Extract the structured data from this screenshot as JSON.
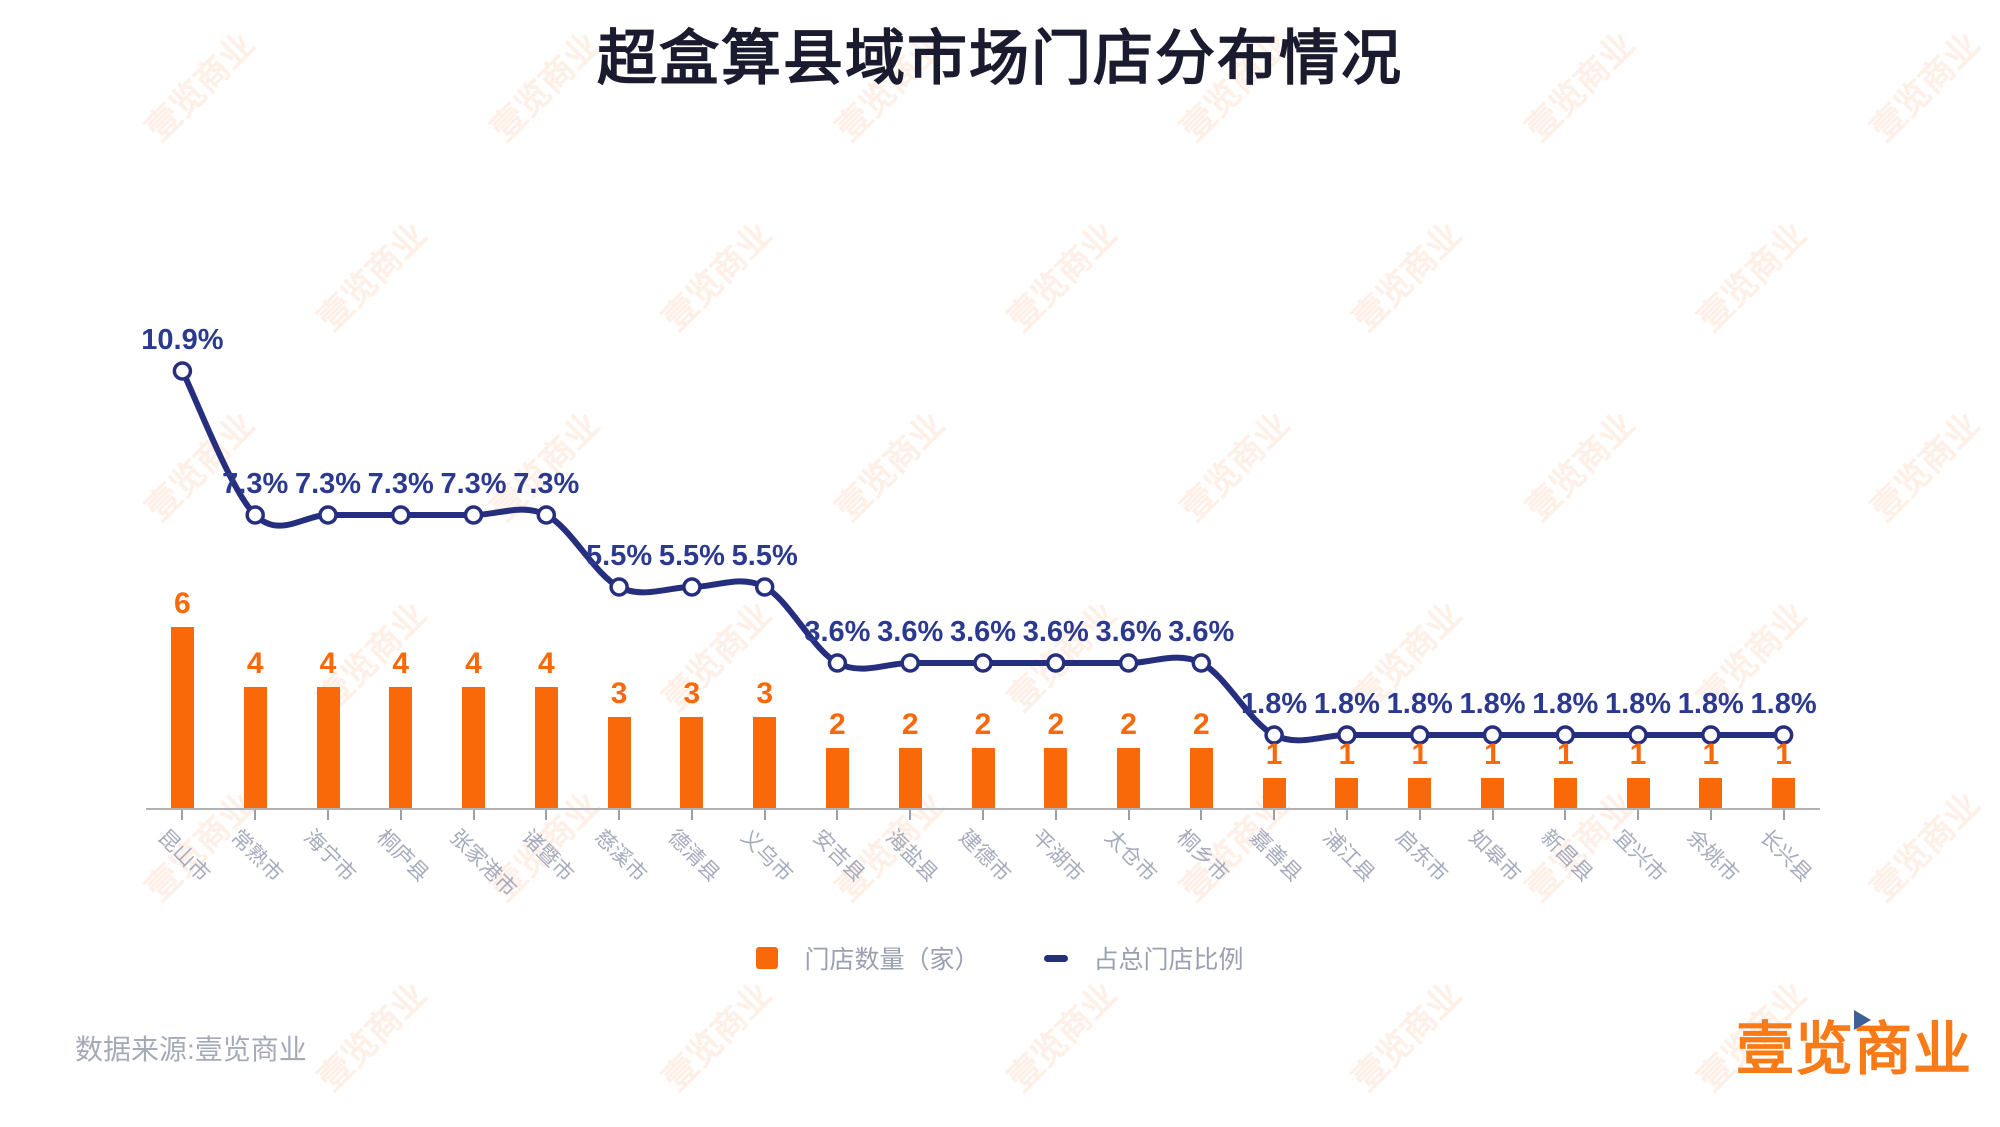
{
  "title": "超盒算县域市场门店分布情况",
  "source_note": "数据来源:壹览商业",
  "logo_text": "壹览商业",
  "watermark_text": "壹览商业",
  "legend": {
    "bars_label": "门店数量（家）",
    "line_label": "占总门店比例"
  },
  "colors": {
    "bar": "#f9690a",
    "bar_label": "#f9690a",
    "line": "#262f7e",
    "line_marker_fill": "#ffffff",
    "pct_label": "#2b3a8f",
    "title": "#1b1b2f",
    "axis": "#b0b2b6",
    "category_label": "#a6abbd",
    "legend_text": "#9aa0b0",
    "logo": "#f97b17",
    "logo_triangle": "#3d6097",
    "watermark": "rgba(247,125,55,0.12)"
  },
  "chart_data": {
    "type": "bar",
    "subtype": "bar-with-line-overlay",
    "categories": [
      "昆山市",
      "常熟市",
      "海宁市",
      "桐庐县",
      "张家港市",
      "诸暨市",
      "慈溪市",
      "德清县",
      "义乌市",
      "安吉县",
      "海盐县",
      "建德市",
      "平湖市",
      "太仓市",
      "桐乡市",
      "嘉善县",
      "浦江县",
      "启东市",
      "如皋市",
      "新昌县",
      "宜兴市",
      "余姚市",
      "长兴县"
    ],
    "series": [
      {
        "name": "门店数量（家）",
        "type": "bar",
        "values": [
          6,
          4,
          4,
          4,
          4,
          4,
          3,
          3,
          3,
          2,
          2,
          2,
          2,
          2,
          2,
          1,
          1,
          1,
          1,
          1,
          1,
          1,
          1
        ]
      },
      {
        "name": "占总门店比例",
        "type": "line",
        "values": [
          10.9,
          7.3,
          7.3,
          7.3,
          7.3,
          7.3,
          5.5,
          5.5,
          5.5,
          3.6,
          3.6,
          3.6,
          3.6,
          3.6,
          3.6,
          1.8,
          1.8,
          1.8,
          1.8,
          1.8,
          1.8,
          1.8,
          1.8
        ],
        "labels": [
          "10.9%",
          "7.3%",
          "7.3%",
          "7.3%",
          "7.3%",
          "7.3%",
          "5.5%",
          "5.5%",
          "5.5%",
          "3.6%",
          "3.6%",
          "3.6%",
          "3.6%",
          "3.6%",
          "3.6%",
          "1.8%",
          "1.8%",
          "1.8%",
          "1.8%",
          "1.8%",
          "1.8%",
          "1.8%",
          "1.8%"
        ]
      }
    ],
    "title": "超盒算县域市场门店分布情况",
    "xlabel": "",
    "ylabel": "",
    "value_axis_visible": false,
    "grid": false,
    "legend_position": "bottom",
    "bar_value_labels_shown": true,
    "line_value_labels_shown": true
  }
}
